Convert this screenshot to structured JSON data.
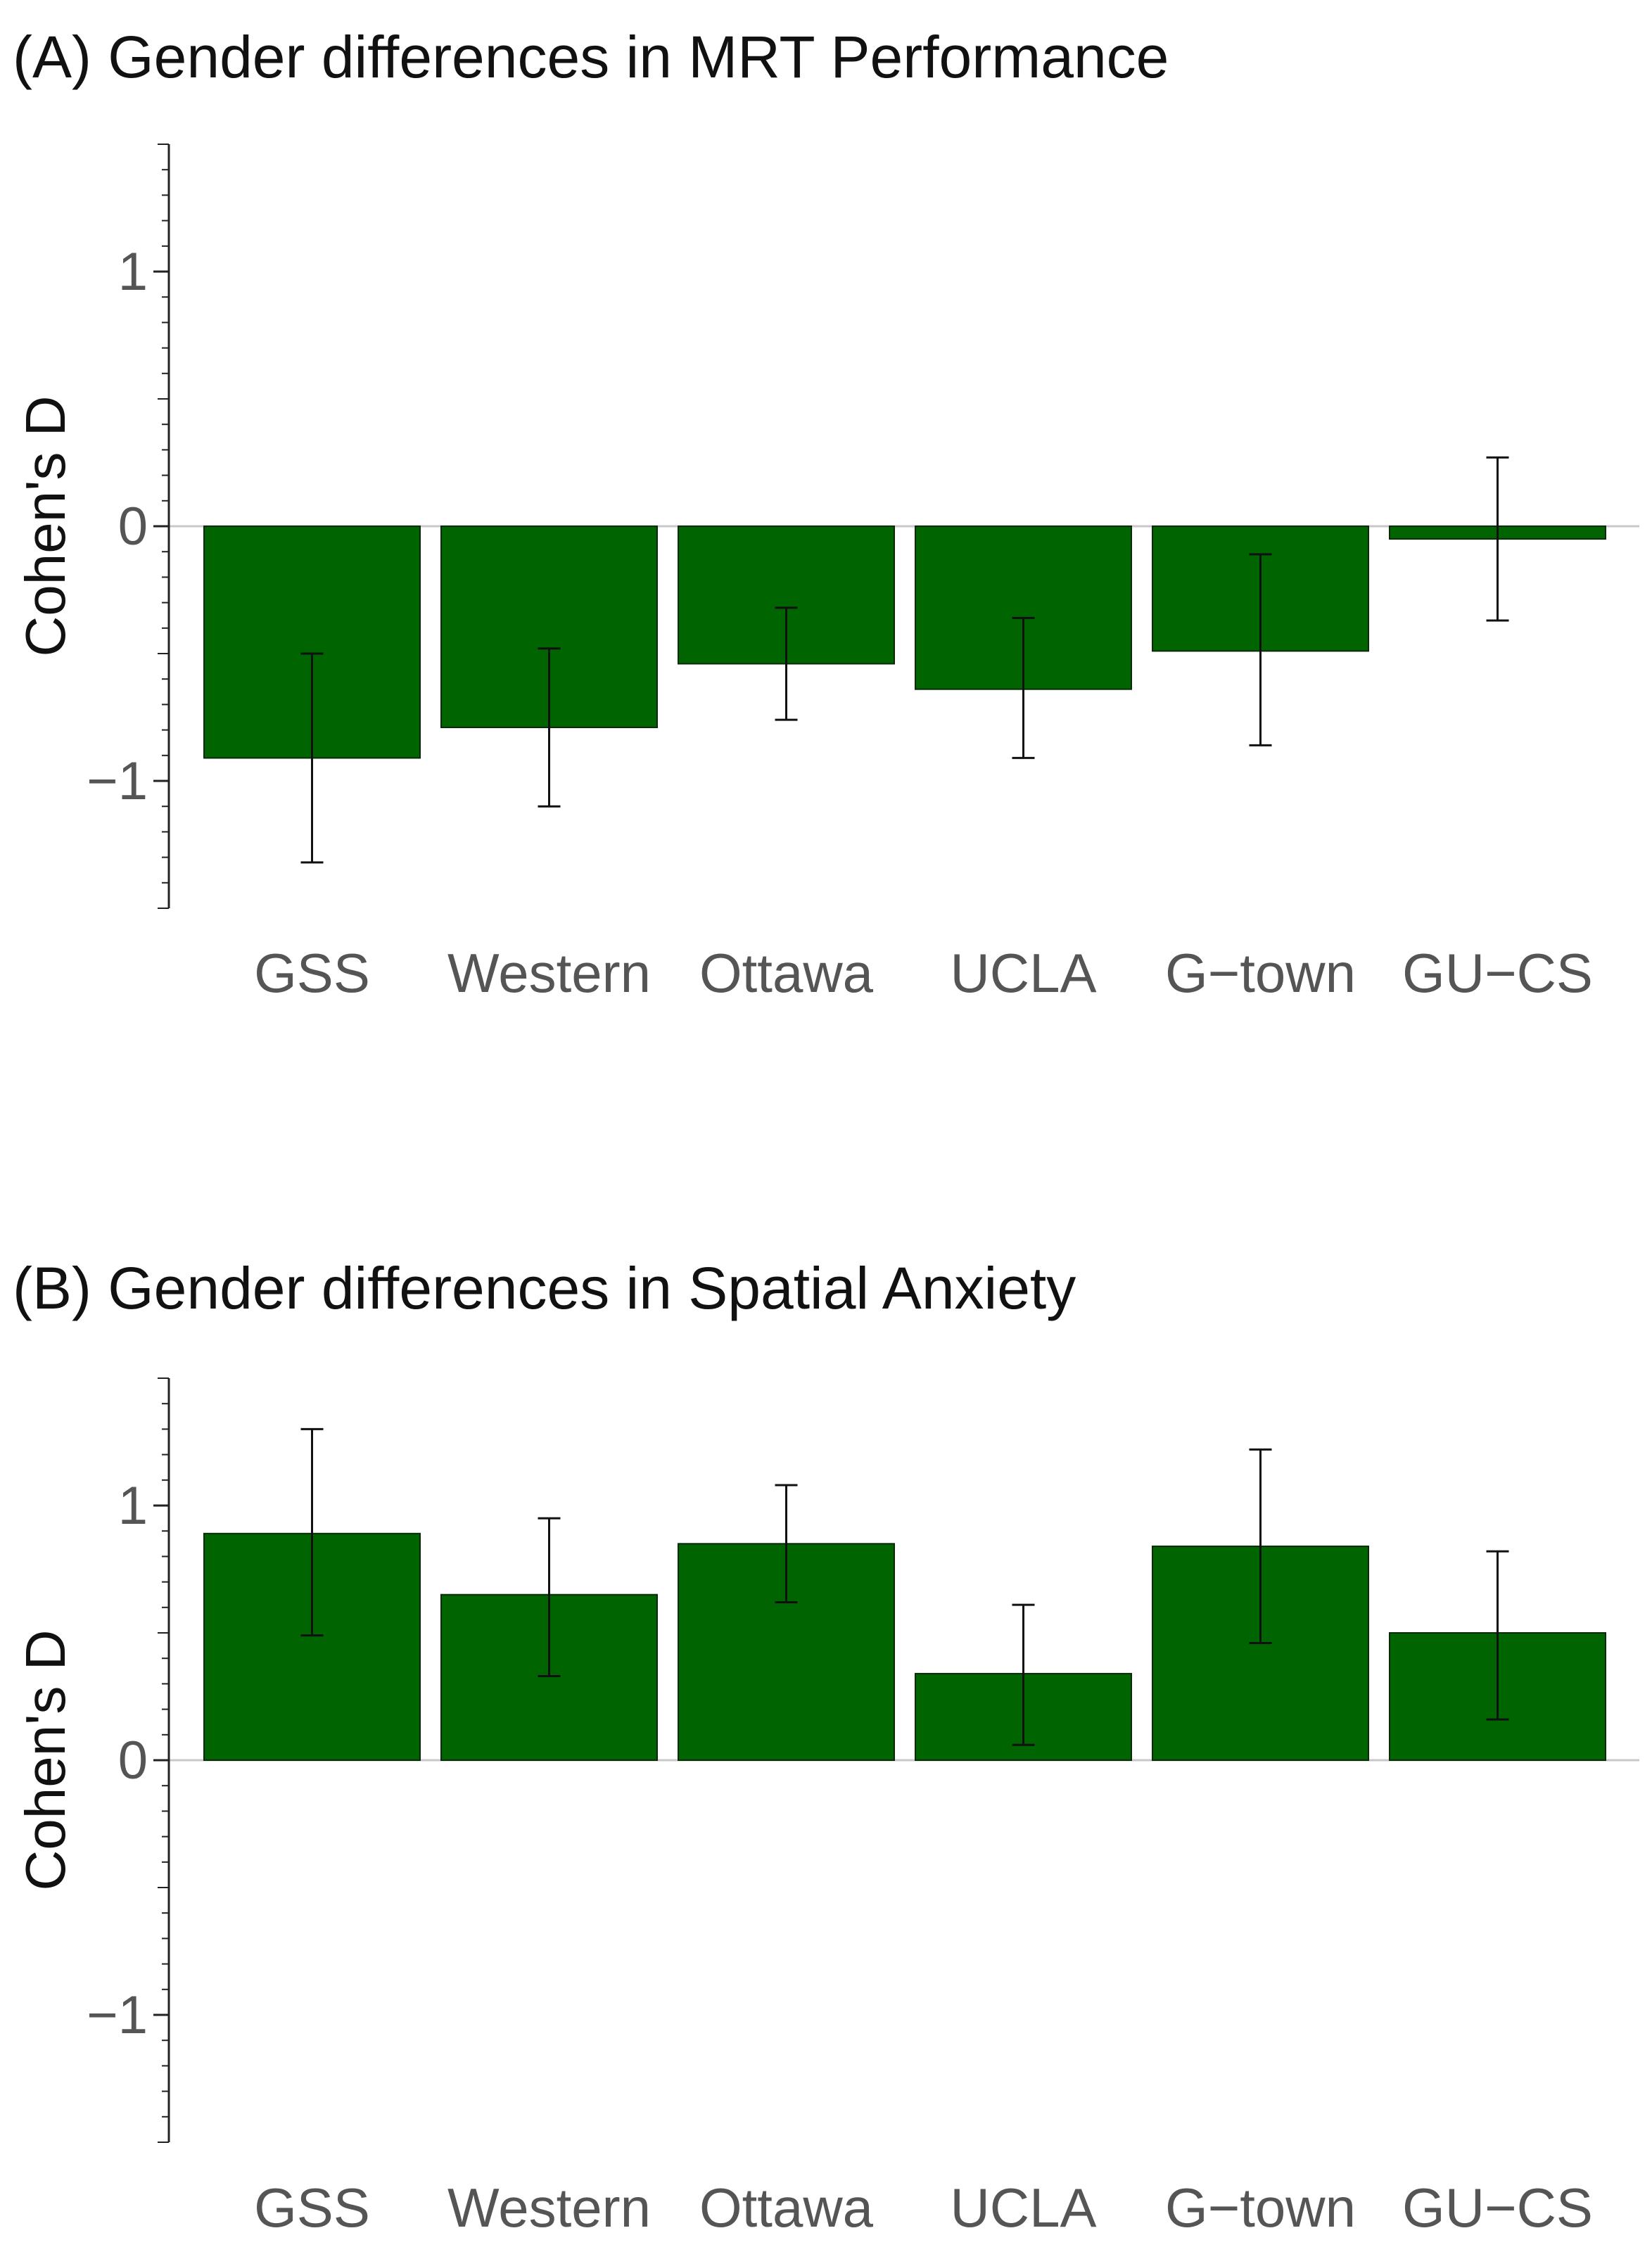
{
  "chart_data": [
    {
      "panel": "(A)",
      "type": "bar",
      "title": "Gender differences in MRT Performance",
      "ylabel": "Cohen's D",
      "xlabel": "",
      "ylim": [
        -1.5,
        1.5
      ],
      "yticks": [
        -1,
        0,
        1
      ],
      "ytick_labels": [
        "−1",
        "0",
        "1"
      ],
      "grid": false,
      "zero_line": true,
      "bar_color": "#006400",
      "categories": [
        "GSS",
        "Western",
        "Ottawa",
        "UCLA",
        "G−town",
        "GU−CS"
      ],
      "values": [
        -0.91,
        -0.79,
        -0.54,
        -0.64,
        -0.49,
        -0.05
      ],
      "error_low": [
        -1.32,
        -1.1,
        -0.76,
        -0.91,
        -0.86,
        -0.37
      ],
      "error_high": [
        -0.5,
        -0.48,
        -0.32,
        -0.36,
        -0.11,
        0.27
      ]
    },
    {
      "panel": "(B)",
      "type": "bar",
      "title": "Gender differences in Spatial Anxiety",
      "ylabel": "Cohen's D",
      "xlabel": "",
      "ylim": [
        -1.5,
        1.5
      ],
      "yticks": [
        -1,
        0,
        1
      ],
      "ytick_labels": [
        "−1",
        "0",
        "1"
      ],
      "grid": false,
      "zero_line": true,
      "bar_color": "#006400",
      "categories": [
        "GSS",
        "Western",
        "Ottawa",
        "UCLA",
        "G−town",
        "GU−CS"
      ],
      "values": [
        0.89,
        0.65,
        0.85,
        0.34,
        0.84,
        0.5
      ],
      "error_low": [
        0.49,
        0.33,
        0.62,
        0.06,
        0.46,
        0.16
      ],
      "error_high": [
        1.3,
        0.95,
        1.08,
        0.61,
        1.22,
        0.82
      ]
    }
  ]
}
